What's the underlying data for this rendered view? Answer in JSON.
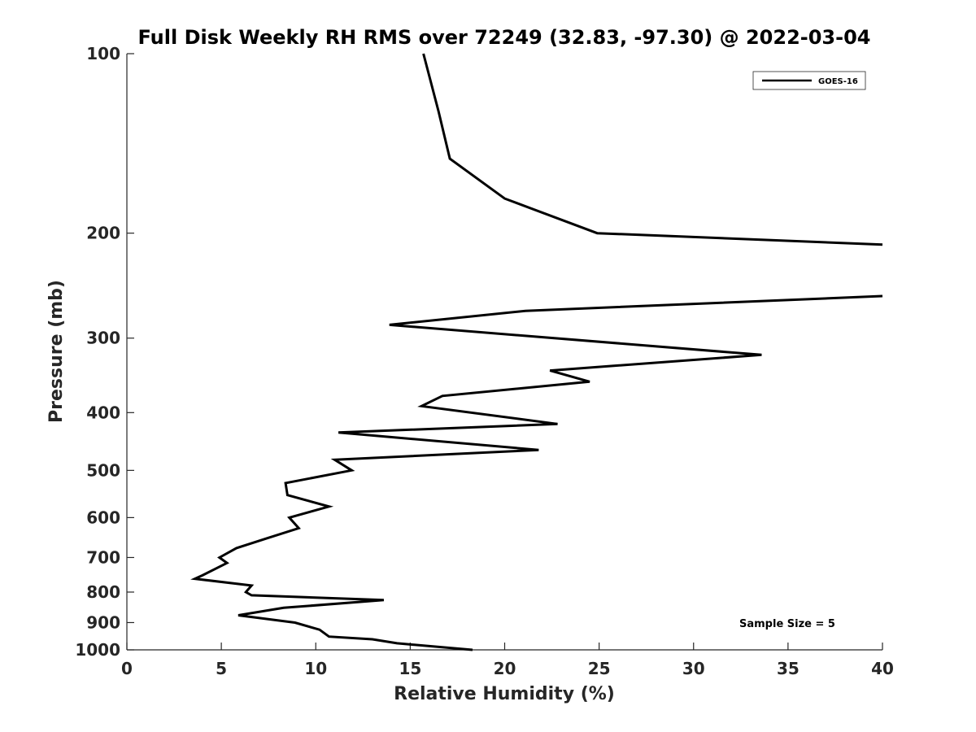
{
  "chart_data": {
    "type": "line",
    "title": "Full Disk Weekly RH RMS over 72249 (32.83, -97.30) @ 2022-03-04",
    "xlabel": "Relative Humidity (%)",
    "ylabel": "Pressure (mb)",
    "xlim": [
      0,
      40
    ],
    "ylim": [
      100,
      1000
    ],
    "y_scale": "log",
    "y_reversed": true,
    "grid": false,
    "legend_position": "top-right",
    "x_ticks": [
      0,
      5,
      10,
      15,
      20,
      25,
      30,
      35,
      40
    ],
    "y_ticks": [
      100,
      200,
      300,
      400,
      500,
      600,
      700,
      800,
      900,
      1000
    ],
    "series": [
      {
        "name": "GOES-16",
        "color": "#000000",
        "x": [
          15.7,
          16.5,
          17.1,
          20.0,
          24.9,
          40.0,
          null,
          40.0,
          21.1,
          13.9,
          33.6,
          22.4,
          24.5,
          16.7,
          15.6,
          22.8,
          11.2,
          21.8,
          11.0,
          11.9,
          8.4,
          8.5,
          10.7,
          8.6,
          9.1,
          7.4,
          5.8,
          4.9,
          5.3,
          4.0,
          3.6,
          6.6,
          6.3,
          6.6,
          13.6,
          8.3,
          5.9,
          8.9,
          10.2,
          10.7,
          13.0,
          14.3,
          18.3
        ],
        "y": [
          100,
          125,
          150,
          175,
          200,
          209,
          null,
          255,
          270,
          285,
          320,
          340,
          355,
          375,
          390,
          418,
          432,
          462,
          480,
          500,
          525,
          550,
          575,
          600,
          625,
          650,
          675,
          700,
          715,
          750,
          760,
          780,
          800,
          810,
          825,
          850,
          875,
          900,
          925,
          950,
          960,
          975,
          1000
        ]
      }
    ],
    "annotations": [
      "Sample Size = 5"
    ]
  }
}
